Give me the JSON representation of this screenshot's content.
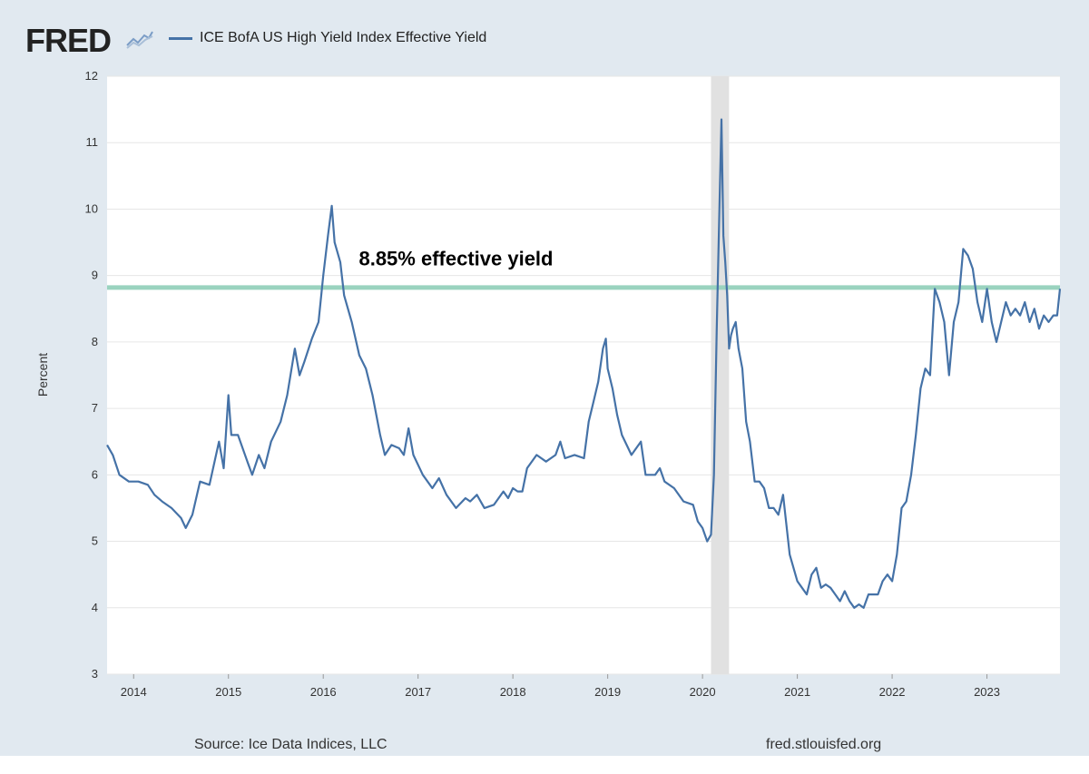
{
  "header": {
    "logo_text": "FRED",
    "legend_label": "ICE BofA US High Yield Index Effective Yield",
    "series_color": "#4572a7"
  },
  "footer": {
    "source": "Source: Ice Data Indices, LLC",
    "site": "fred.stlouisfed.org"
  },
  "chart_data": {
    "type": "line",
    "title": "",
    "xlabel": "",
    "ylabel": "Percent",
    "xlim": [
      2013.72,
      2023.77
    ],
    "ylim": [
      3,
      12
    ],
    "yticks": [
      3,
      4,
      5,
      6,
      7,
      8,
      9,
      10,
      11,
      12
    ],
    "xticks": [
      2014,
      2015,
      2016,
      2017,
      2018,
      2019,
      2020,
      2021,
      2022,
      2023
    ],
    "grid": true,
    "recession_band": [
      2020.09,
      2020.28
    ],
    "recession_color": "#e1e1e1",
    "reference_line": {
      "y": 8.82,
      "color": "#9ad3bf"
    },
    "annotation": {
      "text": "8.85% effective yield",
      "x": 2017.4,
      "y": 9.15
    },
    "series": [
      {
        "name": "ICE BofA US High Yield Index Effective Yield",
        "color": "#4572a7",
        "x": [
          2013.72,
          2013.78,
          2013.85,
          2013.95,
          2014.05,
          2014.15,
          2014.22,
          2014.3,
          2014.4,
          2014.5,
          2014.55,
          2014.62,
          2014.7,
          2014.8,
          2014.9,
          2014.95,
          2015.0,
          2015.03,
          2015.1,
          2015.2,
          2015.25,
          2015.32,
          2015.38,
          2015.45,
          2015.55,
          2015.62,
          2015.7,
          2015.75,
          2015.8,
          2015.88,
          2015.95,
          2016.0,
          2016.05,
          2016.09,
          2016.12,
          2016.18,
          2016.22,
          2016.3,
          2016.38,
          2016.45,
          2016.52,
          2016.6,
          2016.65,
          2016.72,
          2016.8,
          2016.85,
          2016.9,
          2016.95,
          2017.05,
          2017.15,
          2017.22,
          2017.3,
          2017.4,
          2017.5,
          2017.55,
          2017.62,
          2017.7,
          2017.8,
          2017.9,
          2017.95,
          2018.0,
          2018.05,
          2018.1,
          2018.15,
          2018.25,
          2018.35,
          2018.45,
          2018.5,
          2018.55,
          2018.65,
          2018.75,
          2018.8,
          2018.85,
          2018.9,
          2018.95,
          2018.98,
          2019.0,
          2019.05,
          2019.1,
          2019.15,
          2019.25,
          2019.35,
          2019.4,
          2019.5,
          2019.55,
          2019.6,
          2019.7,
          2019.8,
          2019.9,
          2019.95,
          2020.0,
          2020.05,
          2020.09,
          2020.12,
          2020.15,
          2020.18,
          2020.2,
          2020.22,
          2020.24,
          2020.26,
          2020.28,
          2020.3,
          2020.32,
          2020.35,
          2020.38,
          2020.42,
          2020.46,
          2020.5,
          2020.55,
          2020.6,
          2020.65,
          2020.7,
          2020.75,
          2020.8,
          2020.85,
          2020.92,
          2021.0,
          2021.05,
          2021.1,
          2021.15,
          2021.2,
          2021.25,
          2021.3,
          2021.35,
          2021.4,
          2021.45,
          2021.5,
          2021.55,
          2021.6,
          2021.65,
          2021.7,
          2021.75,
          2021.8,
          2021.85,
          2021.9,
          2021.95,
          2022.0,
          2022.05,
          2022.1,
          2022.15,
          2022.2,
          2022.25,
          2022.3,
          2022.35,
          2022.4,
          2022.45,
          2022.5,
          2022.55,
          2022.6,
          2022.65,
          2022.7,
          2022.75,
          2022.8,
          2022.85,
          2022.9,
          2022.95,
          2023.0,
          2023.05,
          2023.1,
          2023.15,
          2023.2,
          2023.25,
          2023.3,
          2023.35,
          2023.4,
          2023.45,
          2023.5,
          2023.55,
          2023.6,
          2023.65,
          2023.7,
          2023.74,
          2023.77
        ],
        "y": [
          6.45,
          6.3,
          6.0,
          5.9,
          5.9,
          5.85,
          5.7,
          5.6,
          5.5,
          5.35,
          5.2,
          5.4,
          5.9,
          5.85,
          6.5,
          6.1,
          7.2,
          6.6,
          6.6,
          6.2,
          6.0,
          6.3,
          6.1,
          6.5,
          6.8,
          7.2,
          7.9,
          7.5,
          7.7,
          8.05,
          8.3,
          9.0,
          9.6,
          10.05,
          9.5,
          9.2,
          8.7,
          8.3,
          7.8,
          7.6,
          7.2,
          6.6,
          6.3,
          6.45,
          6.4,
          6.3,
          6.7,
          6.3,
          6.0,
          5.8,
          5.95,
          5.7,
          5.5,
          5.65,
          5.6,
          5.7,
          5.5,
          5.55,
          5.75,
          5.65,
          5.8,
          5.75,
          5.75,
          6.1,
          6.3,
          6.2,
          6.3,
          6.5,
          6.25,
          6.3,
          6.25,
          6.8,
          7.1,
          7.4,
          7.9,
          8.05,
          7.6,
          7.3,
          6.9,
          6.6,
          6.3,
          6.5,
          6.0,
          6.0,
          6.1,
          5.9,
          5.8,
          5.6,
          5.55,
          5.3,
          5.2,
          5.0,
          5.1,
          6.0,
          8.2,
          10.1,
          11.35,
          9.6,
          9.2,
          8.7,
          7.9,
          8.1,
          8.2,
          8.3,
          7.9,
          7.6,
          6.8,
          6.5,
          5.9,
          5.9,
          5.8,
          5.5,
          5.5,
          5.4,
          5.7,
          4.8,
          4.4,
          4.3,
          4.2,
          4.5,
          4.6,
          4.3,
          4.35,
          4.3,
          4.2,
          4.1,
          4.25,
          4.1,
          4.0,
          4.05,
          4.0,
          4.2,
          4.2,
          4.2,
          4.4,
          4.5,
          4.4,
          4.8,
          5.5,
          5.6,
          6.0,
          6.6,
          7.3,
          7.6,
          7.5,
          8.8,
          8.6,
          8.3,
          7.5,
          8.3,
          8.6,
          9.4,
          9.3,
          9.1,
          8.6,
          8.3,
          8.8,
          8.3,
          8.0,
          8.3,
          8.6,
          8.4,
          8.5,
          8.4,
          8.6,
          8.3,
          8.5,
          8.2,
          8.4,
          8.3,
          8.4,
          8.4,
          8.8
        ]
      }
    ]
  }
}
